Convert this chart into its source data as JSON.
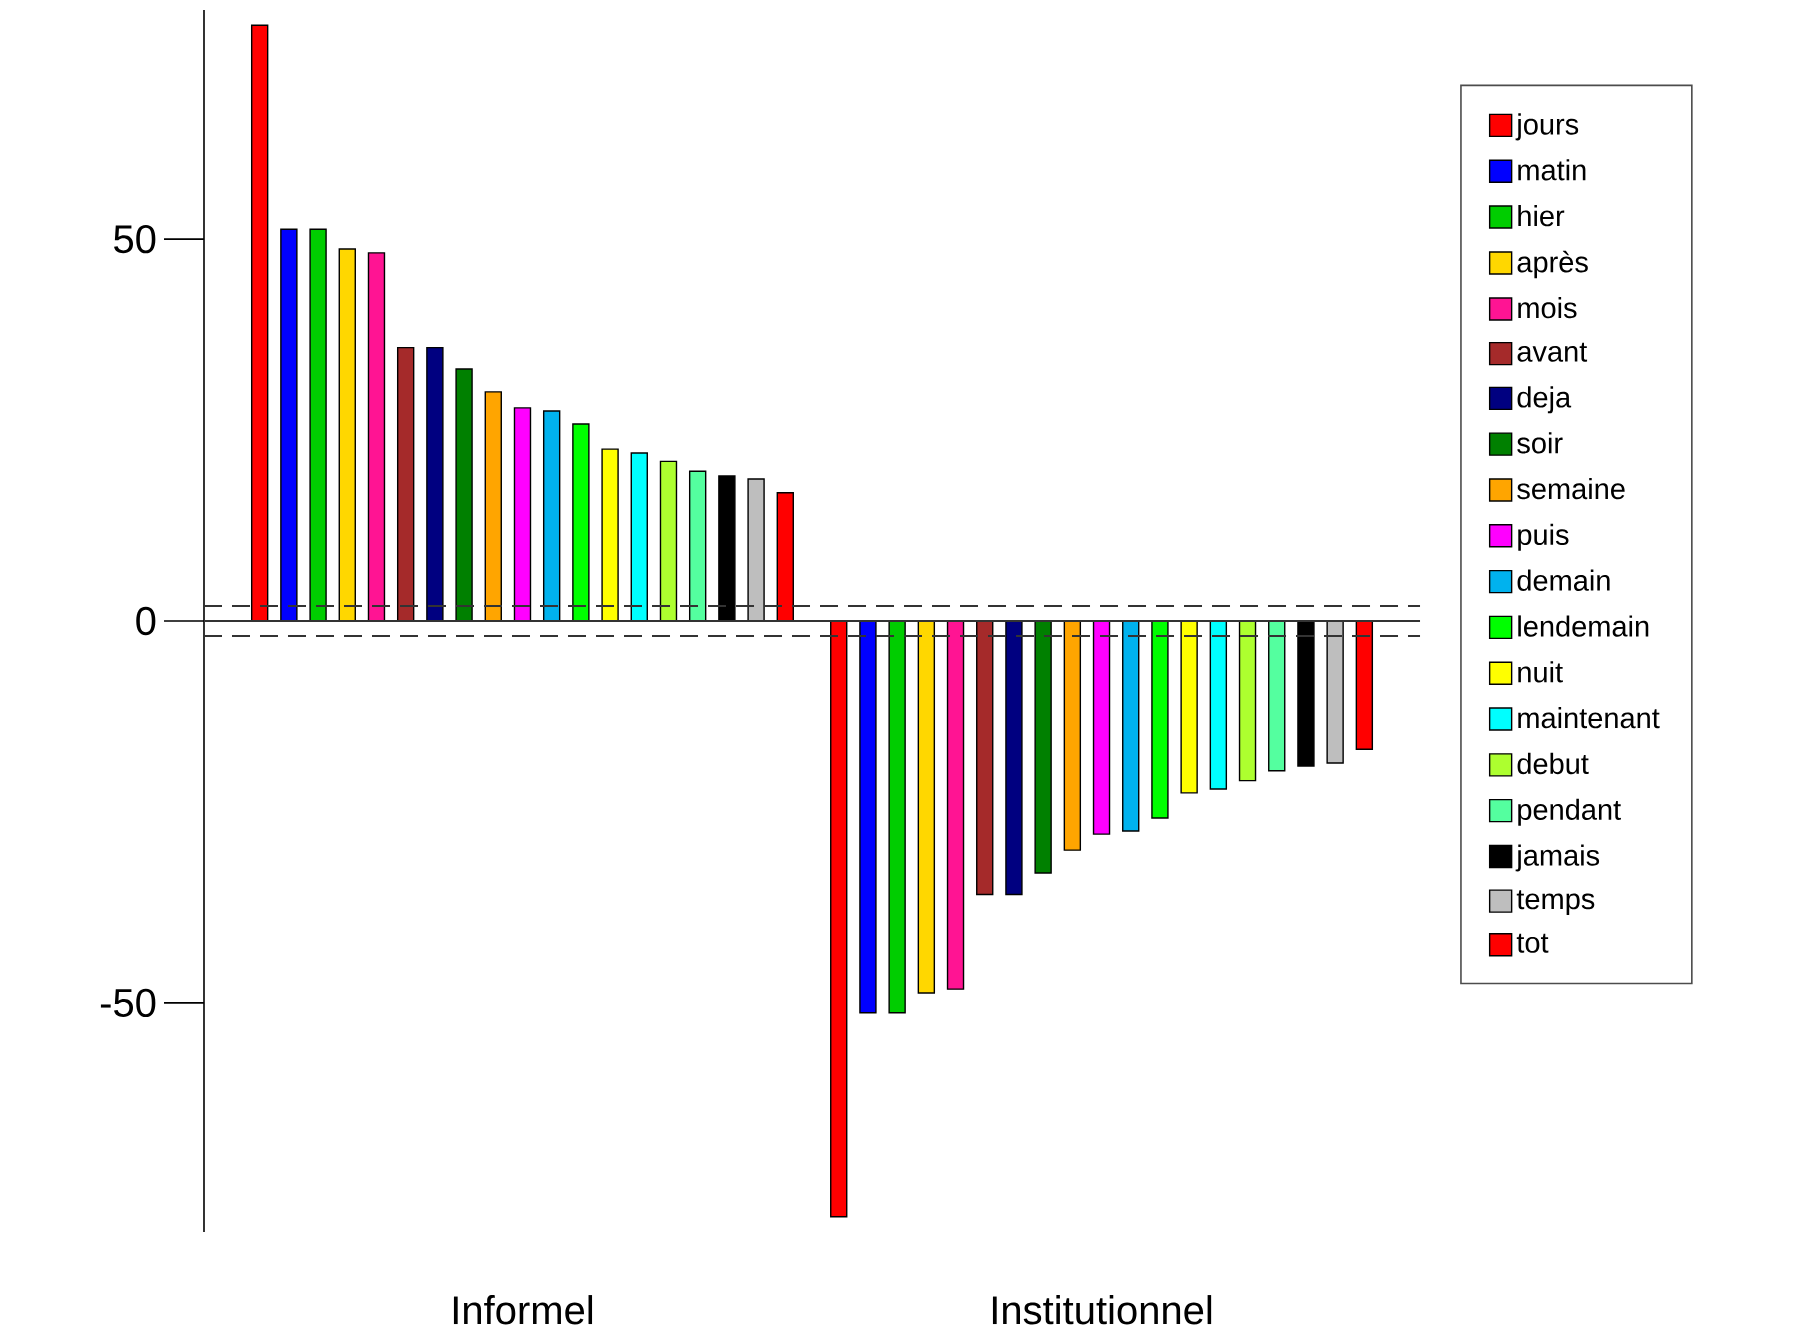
{
  "chart_data": {
    "type": "bar",
    "categories": [
      "Informel",
      "Institutionnel"
    ],
    "series": [
      {
        "name": "jours",
        "color": "#ff0000",
        "values": [
          78.0,
          -78.0
        ]
      },
      {
        "name": "matin",
        "color": "#0000ff",
        "values": [
          51.3,
          -51.3
        ]
      },
      {
        "name": "hier",
        "color": "#00cd00",
        "values": [
          51.3,
          -51.3
        ]
      },
      {
        "name": "après",
        "color": "#ffd700",
        "values": [
          48.7,
          -48.7
        ]
      },
      {
        "name": "mois",
        "color": "#ff1493",
        "values": [
          48.2,
          -48.2
        ]
      },
      {
        "name": "avant",
        "color": "#a52a2a",
        "values": [
          35.8,
          -35.8
        ]
      },
      {
        "name": "deja",
        "color": "#000080",
        "values": [
          35.8,
          -35.8
        ]
      },
      {
        "name": "soir",
        "color": "#008000",
        "values": [
          33.0,
          -33.0
        ]
      },
      {
        "name": "semaine",
        "color": "#ffa500",
        "values": [
          30.0,
          -30.0
        ]
      },
      {
        "name": "puis",
        "color": "#ff00ff",
        "values": [
          27.9,
          -27.9
        ]
      },
      {
        "name": "demain",
        "color": "#00b2ee",
        "values": [
          27.5,
          -27.5
        ]
      },
      {
        "name": "lendemain",
        "color": "#00ff00",
        "values": [
          25.8,
          -25.8
        ]
      },
      {
        "name": "nuit",
        "color": "#ffff00",
        "values": [
          22.5,
          -22.5
        ]
      },
      {
        "name": "maintenant",
        "color": "#00ffff",
        "values": [
          22.0,
          -22.0
        ]
      },
      {
        "name": "debut",
        "color": "#adff2f",
        "values": [
          20.9,
          -20.9
        ]
      },
      {
        "name": "pendant",
        "color": "#54ff9f",
        "values": [
          19.6,
          -19.6
        ]
      },
      {
        "name": "jamais",
        "color": "#000000",
        "values": [
          19.0,
          -19.0
        ]
      },
      {
        "name": "temps",
        "color": "#bebebe",
        "values": [
          18.6,
          -18.6
        ]
      },
      {
        "name": "tot",
        "color": "#ff0000",
        "values": [
          16.8,
          -16.8
        ]
      }
    ],
    "ylim": [
      -80,
      80
    ],
    "yticks": [
      -50,
      0,
      50
    ],
    "ref_lines": [
      {
        "axis": "y",
        "value": 0,
        "line_style": "solid"
      },
      {
        "axis": "y",
        "value": 1.96,
        "line_style": "dashed"
      },
      {
        "axis": "y",
        "value": -1.96,
        "line_style": "dashed"
      }
    ],
    "legend": "right",
    "grid": false
  }
}
